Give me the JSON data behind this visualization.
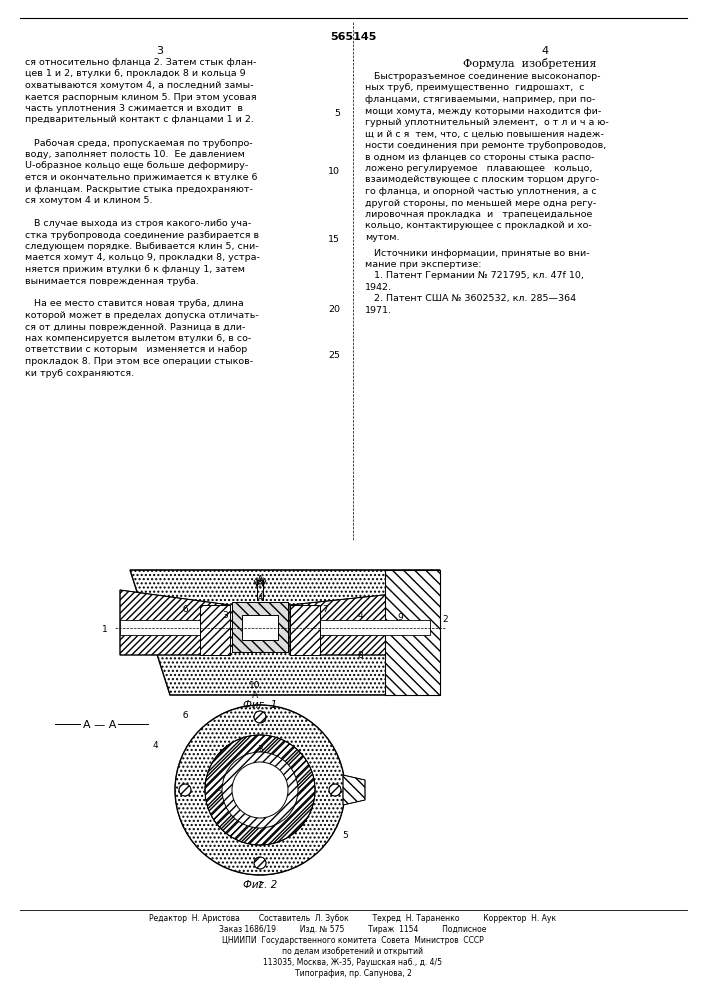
{
  "patent_number": "565145",
  "page_left": "3",
  "page_right": "4",
  "bg_color": "#ffffff",
  "text_color": "#000000",
  "left_column_text": [
    "ся относительно фланца 2. Затем стык флан-",
    "цев 1 и 2, втулки 6, прокладок 8 и кольца 9",
    "охватываются хомутом 4, а последний замы-",
    "кается распорным клином 5. При этом усовая",
    "часть уплотнения 3 сжимается и входит  в",
    "предварительный контакт с фланцами 1 и 2.",
    "",
    "   Рабочая среда, пропускаемая по трубопро-",
    "воду, заполняет полость 10.  Ее давлением",
    "U-образное кольцо еще больше деформиру-",
    "ется и окончательно прижимается к втулке 6",
    "и фланцам. Раскрытие стыка предохраняют-",
    "ся хомутом 4 и клином 5.",
    "",
    "   В случае выхода из строя какого-либо уча-",
    "стка трубопровода соединение разбирается в",
    "следующем порядке. Выбивается клин 5, сни-",
    "мается хомут 4, кольцо 9, прокладки 8, устра-",
    "няется прижим втулки 6 к фланцу 1, затем",
    "вынимается поврежденная труба.",
    "",
    "   На ее место ставится новая труба, длина",
    "которой может в пределах допуска отличать-",
    "ся от длины поврежденной. Разница в дли-",
    "нах компенсируется вылетом втулки 6, в со-",
    "ответствии с которым   изменяется и набор",
    "прокладок 8. При этом все операции стыков-",
    "ки труб сохраняются."
  ],
  "right_column_header": "Формула  изобретения",
  "right_column_text": [
    "   Быстроразъемное соединение высоконапор-",
    "ных труб, преимущественно  гидрошахт,  с",
    "фланцами, стягиваемыми, например, при по-",
    "мощи хомута, между которыми находится фи-",
    "гурный уплотнительный элемент,  о т л и ч а ю-",
    "щ и й с я  тем, что, с целью повышения надеж-",
    "ности соединения при ремонте трубопроводов,",
    "в одном из фланцев со стороны стыка распо-",
    "ложено регулируемое   плавающее   кольцо,",
    "взаимодействующее с плоским торцом друго-",
    "го фланца, и опорной частью уплотнения, а с",
    "другой стороны, по меньшей мере одна регу-",
    "лировочная прокладка  и   трапецеидальное",
    "кольцо, контактирующее с прокладкой и хо-",
    "мутом."
  ],
  "sources_header": "   Источники информации, принятые во вни-",
  "sources_text": [
    "мание при экспертизе:",
    "   1. Патент Германии № 721795, кл. 47f 10,",
    "1942.",
    "   2. Патент США № 3602532, кл. 285—364",
    "1971."
  ],
  "line_numbers_left": [
    "5",
    "10",
    "15",
    "20",
    "25"
  ],
  "fig1_label": "Фиг. 1",
  "fig2_label": "Фиг. 2",
  "fig_aa_label": "А — А",
  "footer_line1": "Редактор  Н. Аристова        Составитель  Л. Зубок          Техред  Н. Тараненко          Корректор  Н. Аук",
  "footer_line2": "Заказ 1686/19          Изд. № 575          Тираж  1154          Подписное",
  "footer_line3": "ЦНИИПИ  Государственного комитета  Совета  Министров  СССР",
  "footer_line4": "по делам изобретений и открытий",
  "footer_line5": "113035, Москва, Ж-35, Раушская наб., д. 4/5",
  "footer_line6": "Типография, пр. Сапунова, 2"
}
